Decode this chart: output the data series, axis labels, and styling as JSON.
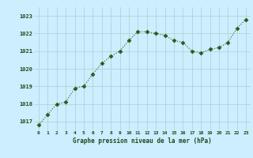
{
  "x": [
    0,
    1,
    2,
    3,
    4,
    5,
    6,
    7,
    8,
    9,
    10,
    11,
    12,
    13,
    14,
    15,
    16,
    17,
    18,
    19,
    20,
    21,
    22,
    23
  ],
  "y": [
    1016.8,
    1017.4,
    1018.0,
    1018.1,
    1018.9,
    1019.0,
    1019.7,
    1020.3,
    1020.7,
    1021.0,
    1021.6,
    1022.1,
    1022.1,
    1022.0,
    1021.9,
    1021.6,
    1021.5,
    1021.0,
    1020.9,
    1021.1,
    1021.2,
    1021.5,
    1022.3,
    1022.8
  ],
  "line_color": "#2d5a1b",
  "marker_color": "#2d5a1b",
  "bg_color": "#cceeff",
  "grid_color": "#aacfcf",
  "xlabel": "Graphe pression niveau de la mer (hPa)",
  "xlabel_color": "#1a4a1a",
  "tick_color": "#1a4a1a",
  "ylim": [
    1016.5,
    1023.5
  ],
  "yticks": [
    1017,
    1018,
    1019,
    1020,
    1021,
    1022,
    1023
  ],
  "xticks": [
    0,
    1,
    2,
    3,
    4,
    5,
    6,
    7,
    8,
    9,
    10,
    11,
    12,
    13,
    14,
    15,
    16,
    17,
    18,
    19,
    20,
    21,
    22,
    23
  ]
}
